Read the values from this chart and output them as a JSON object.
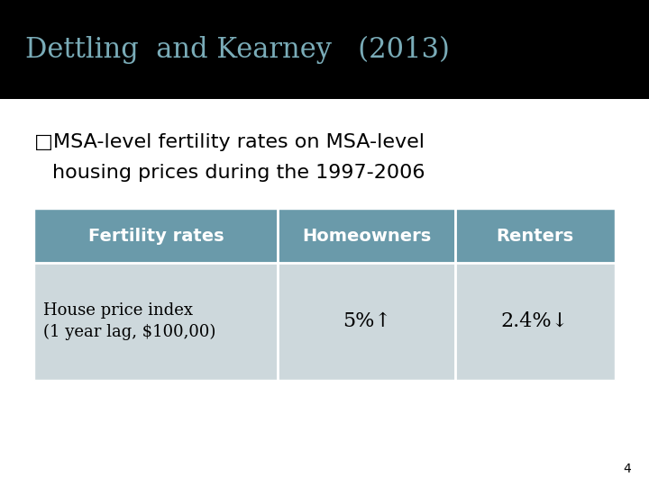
{
  "title": "Dettling  and Kearney   (2013)",
  "title_color": "#7aacb8",
  "title_bg_color": "#000000",
  "title_fontsize": 22,
  "bullet_text_line1": "□MSA-level fertility rates on MSA-level",
  "bullet_text_line2": "housing prices during the 1997-2006",
  "bullet_fontsize": 16,
  "table_header": [
    "Fertility rates",
    "Homeowners",
    "Renters"
  ],
  "table_row": [
    "House price index\n(1 year lag, $100,00)",
    "5%↑",
    "2.4%↓"
  ],
  "header_bg_color": "#6a9aaa",
  "header_text_color": "#ffffff",
  "row_bg_color": "#cdd8dc",
  "cell_text_color": "#000000",
  "page_bg_color": "#ffffff",
  "page_number": "4",
  "table_header_fontsize": 14,
  "table_data_fontsize": 16,
  "table_row0_fontsize": 13
}
